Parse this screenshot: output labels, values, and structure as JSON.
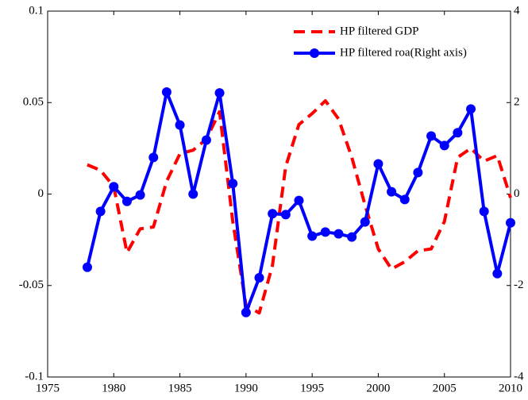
{
  "chart_data": {
    "type": "line",
    "x": [
      1978,
      1979,
      1980,
      1981,
      1982,
      1983,
      1984,
      1985,
      1986,
      1987,
      1988,
      1989,
      1990,
      1991,
      1992,
      1993,
      1994,
      1995,
      1996,
      1997,
      1998,
      1999,
      2000,
      2001,
      2002,
      2003,
      2004,
      2005,
      2006,
      2007,
      2008,
      2009,
      2010
    ],
    "series": [
      {
        "name": "HP filtered GDP",
        "color": "#ff0000",
        "linestyle": "dashed",
        "marker": "none",
        "values": [
          0.016,
          0.013,
          0.004,
          -0.032,
          -0.019,
          -0.018,
          0.007,
          0.022,
          0.024,
          0.03,
          0.045,
          -0.015,
          -0.061,
          -0.065,
          -0.039,
          0.015,
          0.038,
          0.044,
          0.051,
          0.041,
          0.02,
          -0.006,
          -0.03,
          -0.041,
          -0.037,
          -0.031,
          -0.03,
          -0.015,
          0.02,
          0.025,
          0.018,
          0.021,
          -0.002
        ]
      },
      {
        "name": "HP filtered roa(Right axis)",
        "color": "#0000ff",
        "linestyle": "solid",
        "marker": "o",
        "axis": "y2",
        "values": [
          -1.6,
          -0.38,
          0.16,
          -0.16,
          -0.02,
          0.8,
          2.23,
          1.51,
          0,
          1.18,
          2.21,
          0.23,
          -2.59,
          -1.83,
          -0.43,
          -0.45,
          -0.14,
          -0.92,
          -0.83,
          -0.87,
          -0.94,
          -0.61,
          0.66,
          0.05,
          -0.12,
          0.47,
          1.27,
          1.06,
          1.34,
          1.86,
          -0.38,
          -1.74,
          -0.63
        ]
      }
    ],
    "xlim": [
      1975,
      2010
    ],
    "xticks": [
      1975,
      1980,
      1985,
      1990,
      1995,
      2000,
      2005,
      2010
    ],
    "ylim": [
      -0.1,
      0.1
    ],
    "yticks": [
      -0.1,
      -0.05,
      0,
      0.05,
      0.1
    ],
    "y2lim": [
      -4,
      4
    ],
    "y2ticks": [
      -4,
      -2,
      0,
      2,
      4
    ],
    "legend": "upper right"
  }
}
